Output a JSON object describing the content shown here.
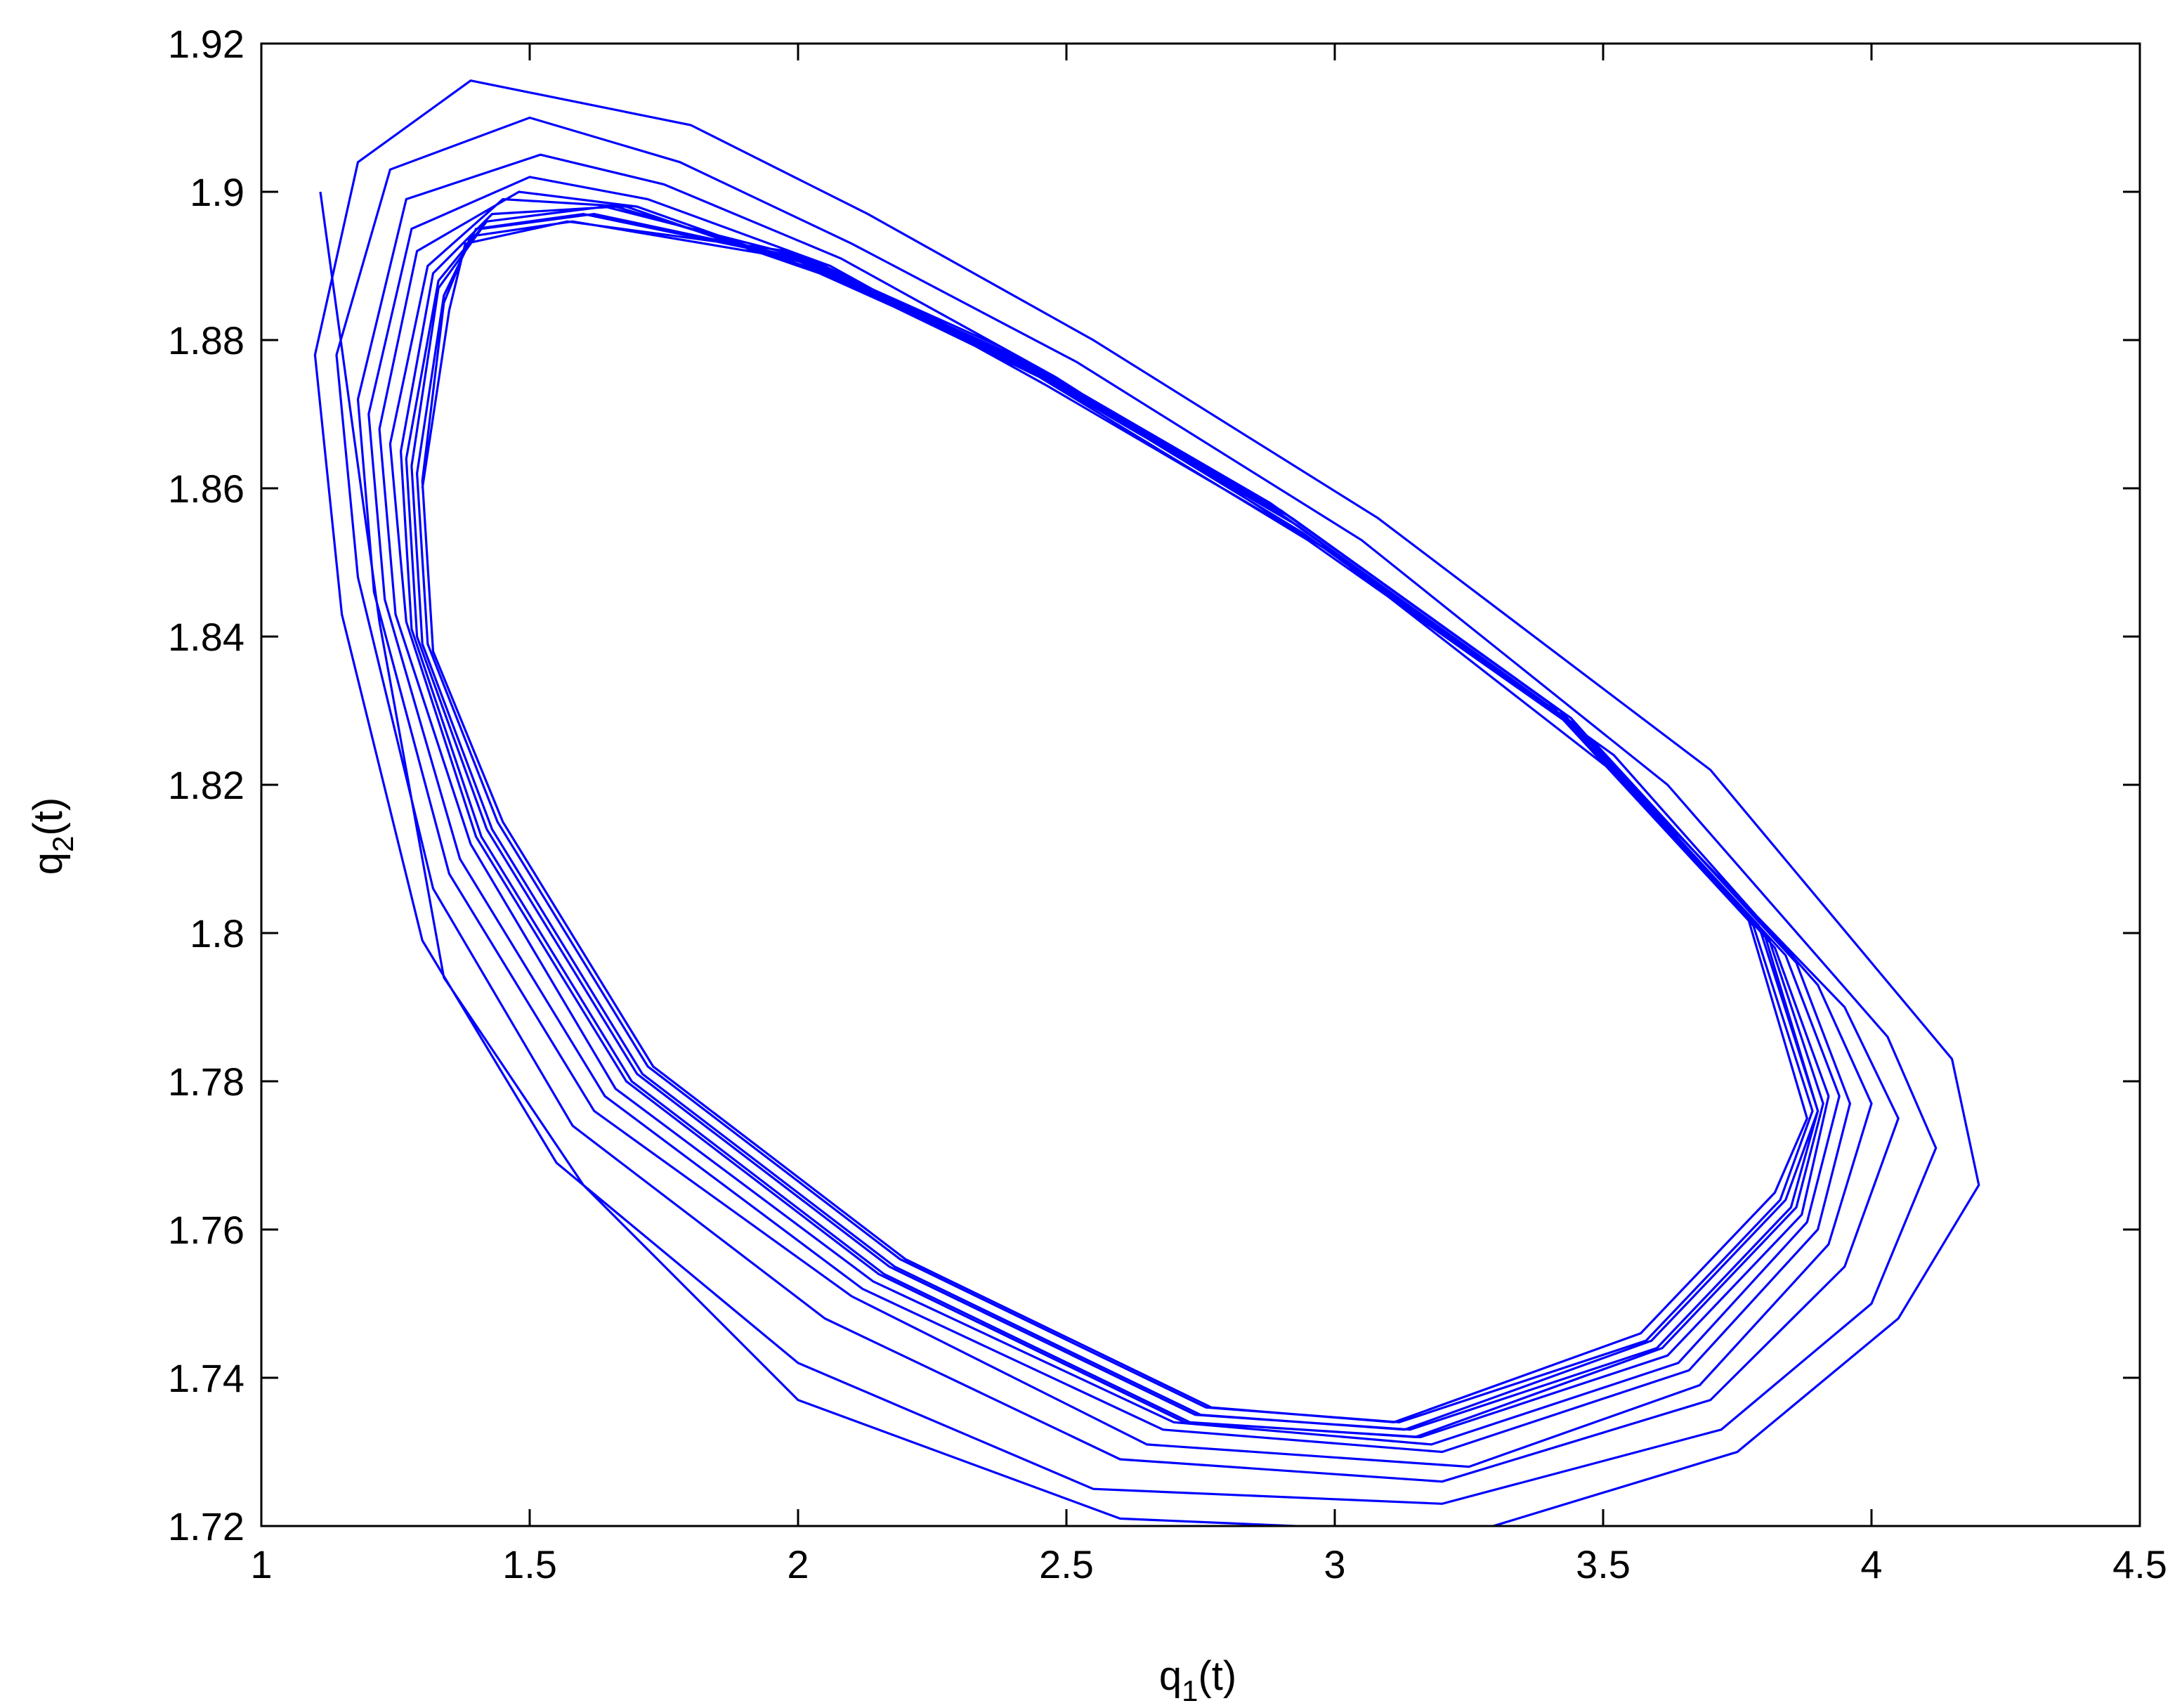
{
  "chart_data": {
    "type": "line",
    "title": "",
    "xlabel": {
      "base": "q",
      "sub": "1",
      "rest": "(t)"
    },
    "ylabel": {
      "base": "q",
      "sub": "2",
      "rest": "(t)"
    },
    "xlim": [
      1,
      4.5
    ],
    "ylim": [
      1.72,
      1.92
    ],
    "xticks": [
      1,
      1.5,
      2,
      2.5,
      3,
      3.5,
      4,
      4.5
    ],
    "xtick_labels": [
      "1",
      "1.5",
      "2",
      "2.5",
      "3",
      "3.5",
      "4",
      "4.5"
    ],
    "yticks": [
      1.72,
      1.74,
      1.76,
      1.78,
      1.8,
      1.82,
      1.84,
      1.86,
      1.88,
      1.9,
      1.92
    ],
    "ytick_labels": [
      "1.72",
      "1.74",
      "1.76",
      "1.78",
      "1.8",
      "1.82",
      "1.84",
      "1.86",
      "1.88",
      "1.9",
      "1.92"
    ],
    "grid": false,
    "box": true,
    "series": [
      {
        "color": "#0000ff",
        "points": [
          [
            1.11,
            1.9
          ],
          [
            1.22,
            1.842
          ],
          [
            1.34,
            1.794
          ],
          [
            1.6,
            1.766
          ],
          [
            2.0,
            1.737
          ],
          [
            2.6,
            1.721
          ],
          [
            3.25,
            1.719
          ],
          [
            3.75,
            1.73
          ],
          [
            4.05,
            1.748
          ],
          [
            4.2,
            1.766
          ],
          [
            4.15,
            1.783
          ],
          [
            3.7,
            1.822
          ],
          [
            3.08,
            1.856
          ],
          [
            2.55,
            1.88
          ],
          [
            2.13,
            1.897
          ],
          [
            1.8,
            1.909
          ],
          [
            1.39,
            1.915
          ],
          [
            1.18,
            1.904
          ],
          [
            1.1,
            1.878
          ],
          [
            1.15,
            1.843
          ],
          [
            1.3,
            1.799
          ],
          [
            1.55,
            1.769
          ],
          [
            2.0,
            1.742
          ],
          [
            2.55,
            1.725
          ],
          [
            3.2,
            1.723
          ],
          [
            3.72,
            1.733
          ],
          [
            4.0,
            1.75
          ],
          [
            4.12,
            1.771
          ],
          [
            4.03,
            1.786
          ],
          [
            3.62,
            1.82
          ],
          [
            3.05,
            1.853
          ],
          [
            2.52,
            1.877
          ],
          [
            2.1,
            1.893
          ],
          [
            1.78,
            1.904
          ],
          [
            1.5,
            1.91
          ],
          [
            1.24,
            1.903
          ],
          [
            1.14,
            1.878
          ],
          [
            1.18,
            1.848
          ],
          [
            1.32,
            1.806
          ],
          [
            1.58,
            1.774
          ],
          [
            2.05,
            1.748
          ],
          [
            2.6,
            1.729
          ],
          [
            3.2,
            1.726
          ],
          [
            3.7,
            1.737
          ],
          [
            3.95,
            1.755
          ],
          [
            4.05,
            1.775
          ],
          [
            3.95,
            1.79
          ],
          [
            3.55,
            1.82
          ],
          [
            3.0,
            1.851
          ],
          [
            2.48,
            1.875
          ],
          [
            2.08,
            1.891
          ],
          [
            1.75,
            1.901
          ],
          [
            1.52,
            1.905
          ],
          [
            1.27,
            1.899
          ],
          [
            1.18,
            1.872
          ],
          [
            1.21,
            1.846
          ],
          [
            1.35,
            1.808
          ],
          [
            1.62,
            1.776
          ],
          [
            2.1,
            1.751
          ],
          [
            2.65,
            1.731
          ],
          [
            3.25,
            1.728
          ],
          [
            3.68,
            1.739
          ],
          [
            3.92,
            1.758
          ],
          [
            4.0,
            1.777
          ],
          [
            3.9,
            1.793
          ],
          [
            3.52,
            1.824
          ],
          [
            2.98,
            1.852
          ],
          [
            2.46,
            1.874
          ],
          [
            2.06,
            1.89
          ],
          [
            1.72,
            1.899
          ],
          [
            1.5,
            1.902
          ],
          [
            1.28,
            1.895
          ],
          [
            1.2,
            1.87
          ],
          [
            1.23,
            1.845
          ],
          [
            1.37,
            1.81
          ],
          [
            1.64,
            1.778
          ],
          [
            2.12,
            1.752
          ],
          [
            2.68,
            1.733
          ],
          [
            3.2,
            1.73
          ],
          [
            3.66,
            1.741
          ],
          [
            3.9,
            1.76
          ],
          [
            3.96,
            1.777
          ],
          [
            3.86,
            1.796
          ],
          [
            3.48,
            1.826
          ],
          [
            2.95,
            1.853
          ],
          [
            2.45,
            1.875
          ],
          [
            2.05,
            1.889
          ],
          [
            1.7,
            1.898
          ],
          [
            1.48,
            1.9
          ],
          [
            1.29,
            1.892
          ],
          [
            1.22,
            1.868
          ],
          [
            1.25,
            1.843
          ],
          [
            1.39,
            1.812
          ],
          [
            1.66,
            1.779
          ],
          [
            2.14,
            1.753
          ],
          [
            2.7,
            1.734
          ],
          [
            3.18,
            1.731
          ],
          [
            3.64,
            1.742
          ],
          [
            3.88,
            1.761
          ],
          [
            3.94,
            1.778
          ],
          [
            3.84,
            1.797
          ],
          [
            3.46,
            1.827
          ],
          [
            2.94,
            1.854
          ],
          [
            2.44,
            1.876
          ],
          [
            2.04,
            1.889
          ],
          [
            1.68,
            1.898
          ],
          [
            1.45,
            1.899
          ],
          [
            1.31,
            1.89
          ],
          [
            1.24,
            1.866
          ],
          [
            1.27,
            1.842
          ],
          [
            1.4,
            1.813
          ],
          [
            1.68,
            1.78
          ],
          [
            2.15,
            1.754
          ],
          [
            2.72,
            1.734
          ],
          [
            3.16,
            1.732
          ],
          [
            3.62,
            1.743
          ],
          [
            3.87,
            1.762
          ],
          [
            3.92,
            1.778
          ],
          [
            3.82,
            1.798
          ],
          [
            3.45,
            1.828
          ],
          [
            2.93,
            1.855
          ],
          [
            2.43,
            1.876
          ],
          [
            2.03,
            1.89
          ],
          [
            1.66,
            1.898
          ],
          [
            1.43,
            1.897
          ],
          [
            1.32,
            1.889
          ],
          [
            1.26,
            1.865
          ],
          [
            1.28,
            1.841
          ],
          [
            1.41,
            1.813
          ],
          [
            1.69,
            1.78
          ],
          [
            2.16,
            1.754
          ],
          [
            2.73,
            1.734
          ],
          [
            3.15,
            1.732
          ],
          [
            3.61,
            1.744
          ],
          [
            3.86,
            1.763
          ],
          [
            3.91,
            1.777
          ],
          [
            3.81,
            1.799
          ],
          [
            3.44,
            1.829
          ],
          [
            2.92,
            1.856
          ],
          [
            2.42,
            1.877
          ],
          [
            2.02,
            1.891
          ],
          [
            1.64,
            1.898
          ],
          [
            1.42,
            1.896
          ],
          [
            1.33,
            1.888
          ],
          [
            1.27,
            1.864
          ],
          [
            1.29,
            1.84
          ],
          [
            1.42,
            1.814
          ],
          [
            1.7,
            1.781
          ],
          [
            2.17,
            1.755
          ],
          [
            2.74,
            1.735
          ],
          [
            3.14,
            1.733
          ],
          [
            3.6,
            1.744
          ],
          [
            3.85,
            1.763
          ],
          [
            3.9,
            1.776
          ],
          [
            3.8,
            1.8
          ],
          [
            3.43,
            1.829
          ],
          [
            2.91,
            1.856
          ],
          [
            2.41,
            1.877
          ],
          [
            2.01,
            1.891
          ],
          [
            1.62,
            1.897
          ],
          [
            1.41,
            1.895
          ],
          [
            1.33,
            1.887
          ],
          [
            1.28,
            1.863
          ],
          [
            1.3,
            1.839
          ],
          [
            1.43,
            1.814
          ],
          [
            1.71,
            1.781
          ],
          [
            2.18,
            1.755
          ],
          [
            2.75,
            1.735
          ],
          [
            3.13,
            1.733
          ],
          [
            3.59,
            1.745
          ],
          [
            3.84,
            1.764
          ],
          [
            3.9,
            1.776
          ],
          [
            3.79,
            1.801
          ],
          [
            3.42,
            1.83
          ],
          [
            2.9,
            1.857
          ],
          [
            2.4,
            1.878
          ],
          [
            2.0,
            1.891
          ],
          [
            1.6,
            1.897
          ],
          [
            1.4,
            1.895
          ],
          [
            1.34,
            1.886
          ],
          [
            1.29,
            1.862
          ],
          [
            1.31,
            1.839
          ],
          [
            1.44,
            1.815
          ],
          [
            1.72,
            1.782
          ],
          [
            2.19,
            1.756
          ],
          [
            2.76,
            1.736
          ],
          [
            3.12,
            1.734
          ],
          [
            3.58,
            1.745
          ],
          [
            3.83,
            1.764
          ],
          [
            3.89,
            1.776
          ],
          [
            3.78,
            1.801
          ],
          [
            3.41,
            1.83
          ],
          [
            2.89,
            1.857
          ],
          [
            2.39,
            1.878
          ],
          [
            1.99,
            1.891
          ],
          [
            1.58,
            1.896
          ],
          [
            1.39,
            1.894
          ],
          [
            1.34,
            1.885
          ],
          [
            1.3,
            1.861
          ],
          [
            1.32,
            1.838
          ],
          [
            1.45,
            1.815
          ],
          [
            1.73,
            1.782
          ],
          [
            2.2,
            1.756
          ],
          [
            2.77,
            1.736
          ],
          [
            3.11,
            1.734
          ],
          [
            3.57,
            1.746
          ],
          [
            3.82,
            1.765
          ],
          [
            3.88,
            1.775
          ],
          [
            3.77,
            1.802
          ],
          [
            3.4,
            1.831
          ],
          [
            2.88,
            1.858
          ],
          [
            2.38,
            1.879
          ],
          [
            1.98,
            1.892
          ],
          [
            1.57,
            1.896
          ],
          [
            1.38,
            1.893
          ],
          [
            1.35,
            1.884
          ],
          [
            1.3,
            1.86
          ]
        ]
      }
    ]
  }
}
